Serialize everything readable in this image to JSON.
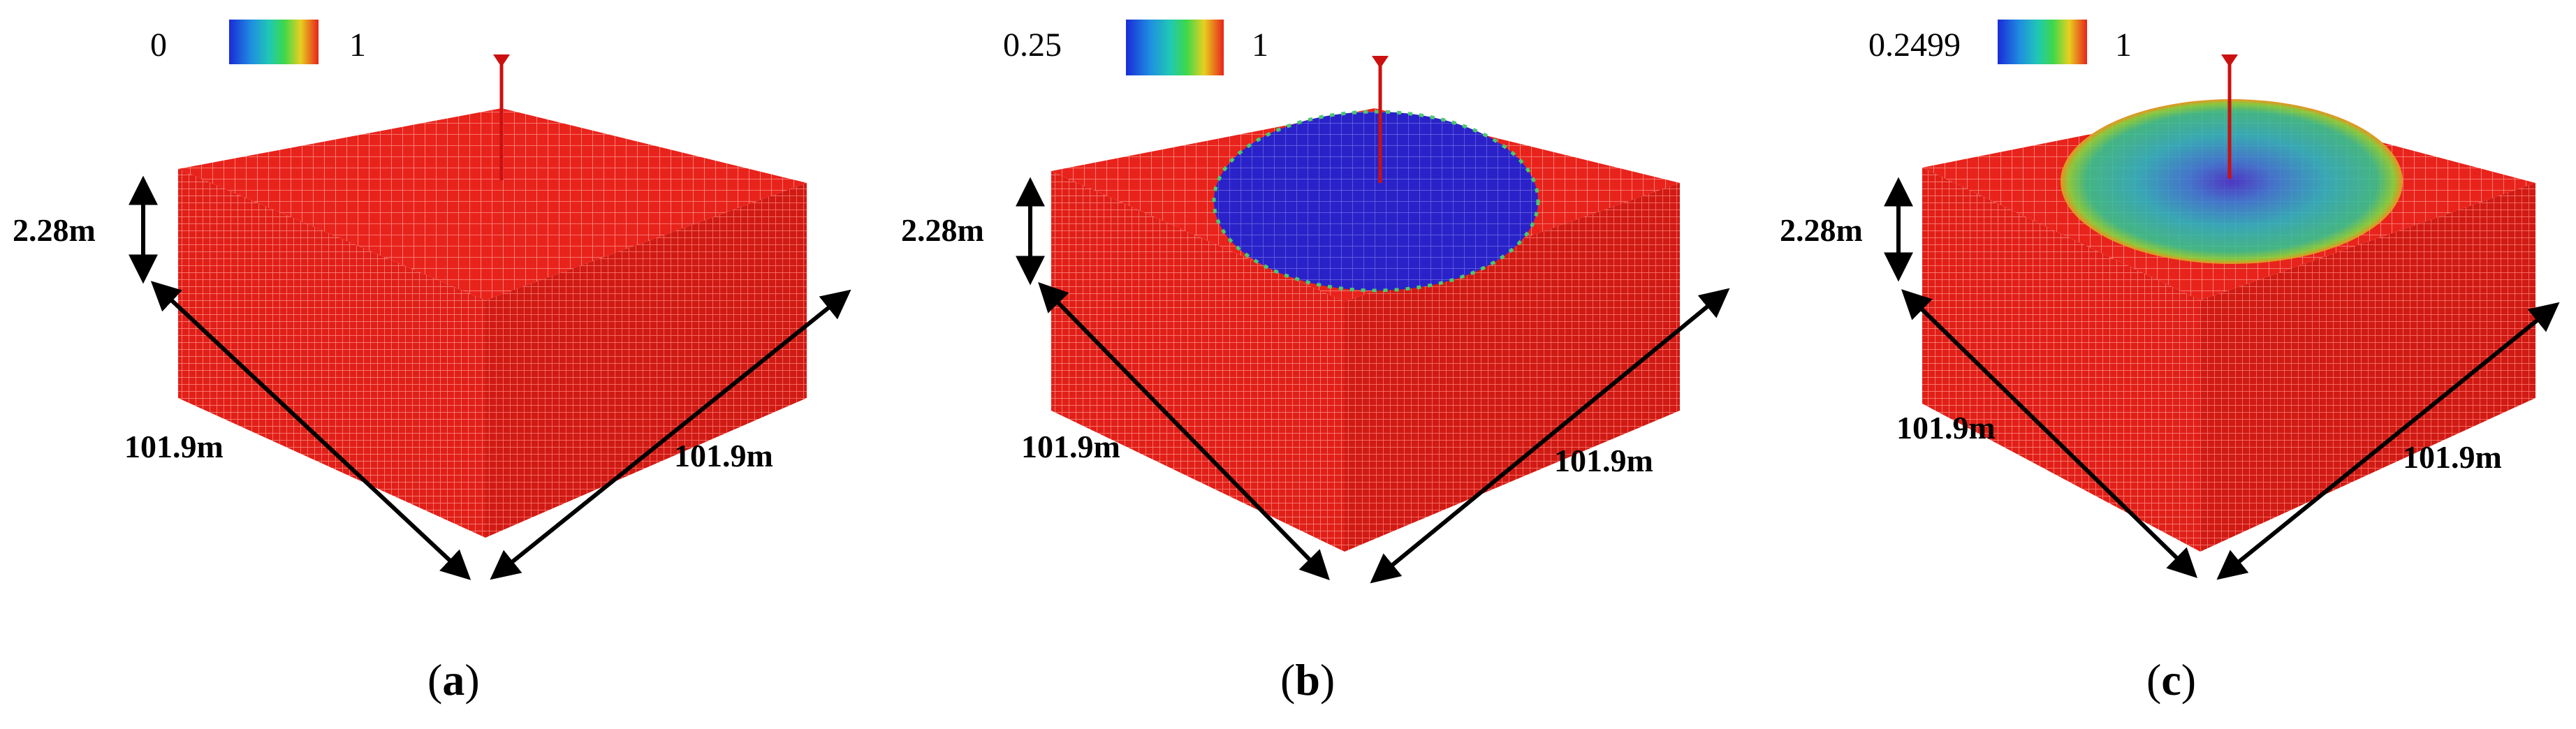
{
  "panels": [
    {
      "id": "a",
      "caption_letter": "a",
      "legend": {
        "min_label": "0",
        "max_label": "1"
      },
      "dimensions": {
        "height": "2.28m",
        "length_left": "101.9m",
        "length_right": "101.9m"
      },
      "colors": {
        "block": "#e8231c",
        "grid": "#ff8a80"
      }
    },
    {
      "id": "b",
      "caption_letter": "b",
      "legend": {
        "min_label": "0.25",
        "max_label": "1"
      },
      "dimensions": {
        "height": "2.28m",
        "length_left": "101.9m",
        "length_right": "101.9m"
      },
      "colors": {
        "block": "#e8231c",
        "grid": "#ff8a80",
        "region": "#2a22c8"
      }
    },
    {
      "id": "c",
      "caption_letter": "c",
      "legend": {
        "min_label": "0.2499",
        "max_label": "1"
      },
      "dimensions": {
        "height": "2.28m",
        "length_left": "101.9m",
        "length_right": "101.9m"
      },
      "colors": {
        "block": "#e8231c",
        "grid": "#ff8a80",
        "region_center": "#3a50d8",
        "region_mid": "#22b8b0",
        "region_edge": "#6ad84a"
      }
    }
  ]
}
